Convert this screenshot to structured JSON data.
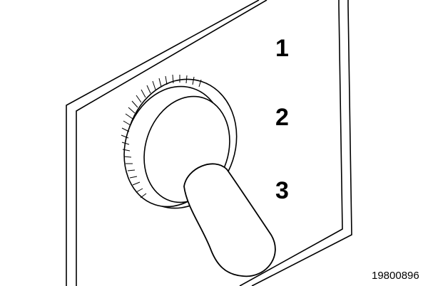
{
  "positions": [
    "1",
    "2",
    "3"
  ],
  "figure_code": "19800896",
  "colors": {
    "line": "#000000",
    "background": "#ffffff"
  }
}
